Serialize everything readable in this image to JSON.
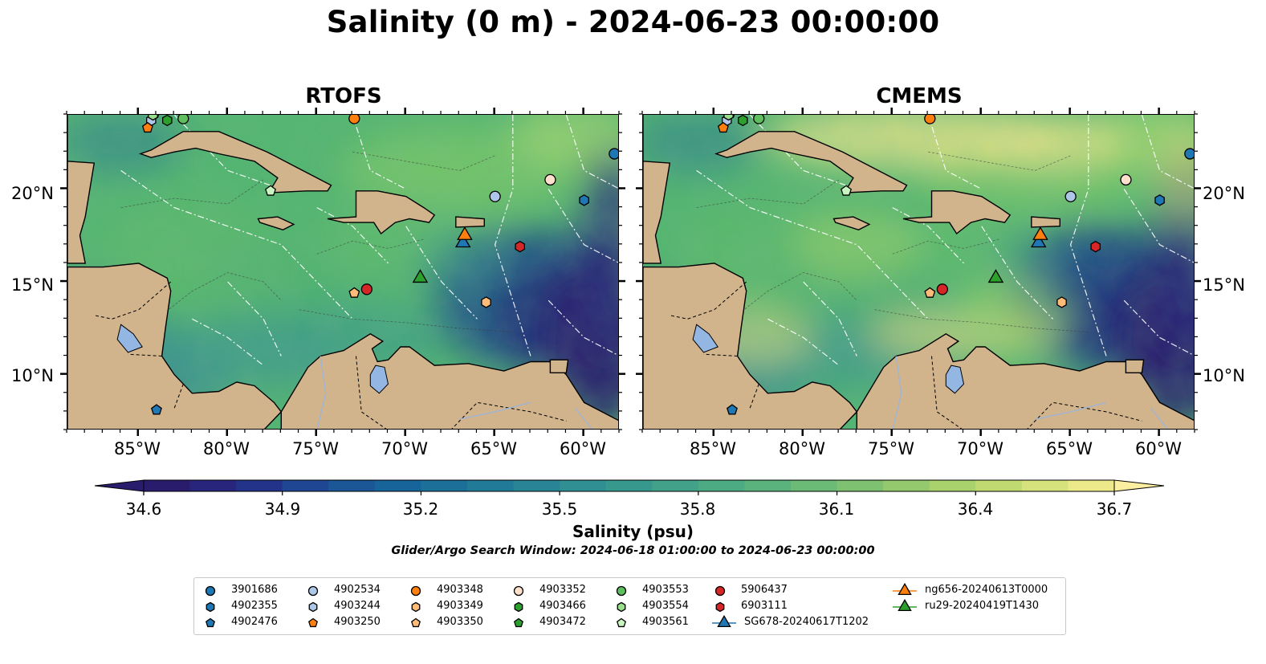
{
  "title": "Salinity (0 m) - 2024-06-23 00:00:00",
  "panels": [
    {
      "title": "RTOFS"
    },
    {
      "title": "CMEMS"
    }
  ],
  "axes": {
    "lon_ticks": [
      "85°W",
      "80°W",
      "75°W",
      "70°W",
      "65°W",
      "60°W"
    ],
    "lat_ticks": [
      "20°N",
      "15°N",
      "10°N"
    ]
  },
  "colorbar": {
    "label": "Salinity (psu)",
    "ticks": [
      "34.6",
      "34.9",
      "35.2",
      "35.5",
      "35.8",
      "36.1",
      "36.4",
      "36.7"
    ],
    "range": [
      34.6,
      36.7
    ],
    "colormap": "haline (dark blue → green → yellow)",
    "extend": "both"
  },
  "search_window": "Glider/Argo Search Window: 2024-06-18 01:00:00 to 2024-06-23 00:00:00",
  "legend": [
    {
      "label": "3901686",
      "marker": "circle",
      "color": "#1f77b4"
    },
    {
      "label": "4902355",
      "marker": "hexagon",
      "color": "#1f77b4"
    },
    {
      "label": "4902476",
      "marker": "pentagon",
      "color": "#1f77b4"
    },
    {
      "label": "4902534",
      "marker": "circle",
      "color": "#aec7e8"
    },
    {
      "label": "4903244",
      "marker": "hexagon",
      "color": "#aec7e8"
    },
    {
      "label": "4903250",
      "marker": "pentagon",
      "color": "#ff7f0e"
    },
    {
      "label": "4903348",
      "marker": "circle",
      "color": "#ff7f0e"
    },
    {
      "label": "4903349",
      "marker": "hexagon",
      "color": "#ffbb78"
    },
    {
      "label": "4903350",
      "marker": "pentagon",
      "color": "#ffbb78"
    },
    {
      "label": "4903352",
      "marker": "circle",
      "color": "#ffe0cc"
    },
    {
      "label": "4903466",
      "marker": "hexagon",
      "color": "#2ca02c"
    },
    {
      "label": "4903472",
      "marker": "pentagon",
      "color": "#2ca02c"
    },
    {
      "label": "4903553",
      "marker": "circle",
      "color": "#5fbf5f"
    },
    {
      "label": "4903554",
      "marker": "hexagon",
      "color": "#98df8a"
    },
    {
      "label": "4903561",
      "marker": "pentagon",
      "color": "#c8f5c0"
    },
    {
      "label": "5906437",
      "marker": "circle",
      "color": "#d62728"
    },
    {
      "label": "6903111",
      "marker": "hexagon",
      "color": "#d62728"
    },
    {
      "label": "SG678-20240617T1202",
      "marker": "triangle-line",
      "color": "#1f77b4"
    },
    {
      "label": "ng656-20240613T0000",
      "marker": "triangle-line",
      "color": "#ff7f0e"
    },
    {
      "label": "ru29-20240419T1430",
      "marker": "triangle-line",
      "color": "#2ca02c"
    }
  ],
  "chart_data": {
    "type": "heatmap",
    "variable": "Salinity",
    "depth_m": 0,
    "units": "psu",
    "lon_range": [
      -89,
      -58
    ],
    "lat_range": [
      7,
      24
    ],
    "observations": [
      {
        "id": "3901686",
        "lon": -58.3,
        "lat": 21.9
      },
      {
        "id": "4902355",
        "lon": -60.0,
        "lat": 19.4
      },
      {
        "id": "4902476",
        "lon": -84.0,
        "lat": 8.1
      },
      {
        "id": "4902534",
        "lon": -65.0,
        "lat": 19.6
      },
      {
        "id": "4903244",
        "lon": -84.3,
        "lat": 23.7
      },
      {
        "id": "4903250",
        "lon": -84.5,
        "lat": 23.3
      },
      {
        "id": "4903348",
        "lon": -72.9,
        "lat": 23.8
      },
      {
        "id": "4903349",
        "lon": -65.5,
        "lat": 13.9
      },
      {
        "id": "4903350",
        "lon": -72.9,
        "lat": 14.4
      },
      {
        "id": "4903352",
        "lon": -61.9,
        "lat": 20.5
      },
      {
        "id": "4903466",
        "lon": -83.4,
        "lat": 23.7
      },
      {
        "id": "4903472",
        "lon": -84.1,
        "lat": 24.1
      },
      {
        "id": "4903553",
        "lon": -82.5,
        "lat": 23.8
      },
      {
        "id": "4903554",
        "lon": -84.2,
        "lat": 24.0
      },
      {
        "id": "4903561",
        "lon": -77.6,
        "lat": 19.9
      },
      {
        "id": "5906437",
        "lon": -72.2,
        "lat": 14.6
      },
      {
        "id": "6903111",
        "lon": -63.6,
        "lat": 16.9
      },
      {
        "id": "SG678-20240617T1202",
        "lon": -66.8,
        "lat": 17.1
      },
      {
        "id": "ng656-20240613T0000",
        "lon": -66.7,
        "lat": 17.5
      },
      {
        "id": "ru29-20240419T1430",
        "lon": -69.2,
        "lat": 15.2
      }
    ]
  }
}
